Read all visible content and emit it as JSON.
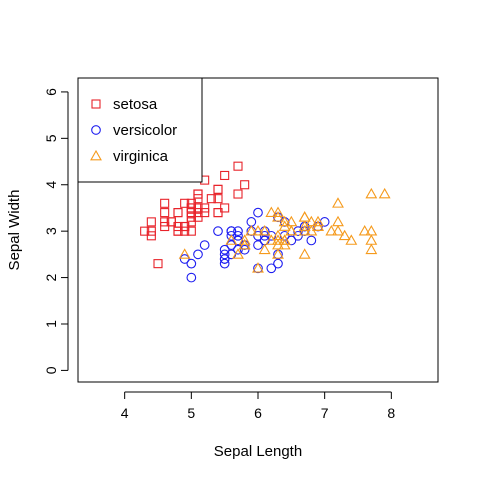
{
  "chart_data": {
    "type": "scatter",
    "xlabel": "Sepal Length",
    "ylabel": "Sepal Width",
    "xlim": [
      3.3,
      8.7
    ],
    "ylim": [
      -0.25,
      6.3
    ],
    "x_ticks": [
      4,
      5,
      6,
      7,
      8
    ],
    "y_ticks": [
      0,
      1,
      2,
      3,
      4,
      5,
      6
    ],
    "grid": false,
    "legend_position": "top-left",
    "series": [
      {
        "name": "setosa",
        "marker": "square",
        "color": "#e8232a",
        "points": [
          [
            5.1,
            3.5
          ],
          [
            4.9,
            3.0
          ],
          [
            4.7,
            3.2
          ],
          [
            4.6,
            3.1
          ],
          [
            5.0,
            3.6
          ],
          [
            5.4,
            3.9
          ],
          [
            4.6,
            3.4
          ],
          [
            5.0,
            3.4
          ],
          [
            4.4,
            2.9
          ],
          [
            4.9,
            3.1
          ],
          [
            5.4,
            3.7
          ],
          [
            4.8,
            3.4
          ],
          [
            4.8,
            3.0
          ],
          [
            4.3,
            3.0
          ],
          [
            5.8,
            4.0
          ],
          [
            5.7,
            4.4
          ],
          [
            5.4,
            3.9
          ],
          [
            5.1,
            3.5
          ],
          [
            5.7,
            3.8
          ],
          [
            5.1,
            3.8
          ],
          [
            5.4,
            3.4
          ],
          [
            5.1,
            3.7
          ],
          [
            4.6,
            3.6
          ],
          [
            5.1,
            3.3
          ],
          [
            4.8,
            3.4
          ],
          [
            5.0,
            3.0
          ],
          [
            5.0,
            3.4
          ],
          [
            5.2,
            3.5
          ],
          [
            5.2,
            3.4
          ],
          [
            4.7,
            3.2
          ],
          [
            4.8,
            3.1
          ],
          [
            5.4,
            3.4
          ],
          [
            5.2,
            4.1
          ],
          [
            5.5,
            4.2
          ],
          [
            4.9,
            3.1
          ],
          [
            5.0,
            3.2
          ],
          [
            5.5,
            3.5
          ],
          [
            4.9,
            3.6
          ],
          [
            4.4,
            3.0
          ],
          [
            5.1,
            3.4
          ],
          [
            5.0,
            3.5
          ],
          [
            4.5,
            2.3
          ],
          [
            4.4,
            3.2
          ],
          [
            5.0,
            3.5
          ],
          [
            5.1,
            3.8
          ],
          [
            4.8,
            3.0
          ],
          [
            5.1,
            3.8
          ],
          [
            4.6,
            3.2
          ],
          [
            5.3,
            3.7
          ],
          [
            5.0,
            3.3
          ]
        ]
      },
      {
        "name": "versicolor",
        "marker": "circle",
        "color": "#1e1ef0",
        "points": [
          [
            7.0,
            3.2
          ],
          [
            6.4,
            3.2
          ],
          [
            6.9,
            3.1
          ],
          [
            5.5,
            2.3
          ],
          [
            6.5,
            2.8
          ],
          [
            5.7,
            2.8
          ],
          [
            6.3,
            3.3
          ],
          [
            4.9,
            2.4
          ],
          [
            6.6,
            2.9
          ],
          [
            5.2,
            2.7
          ],
          [
            5.0,
            2.0
          ],
          [
            5.9,
            3.0
          ],
          [
            6.0,
            2.2
          ],
          [
            6.1,
            2.9
          ],
          [
            5.6,
            2.9
          ],
          [
            6.7,
            3.1
          ],
          [
            5.6,
            3.0
          ],
          [
            5.8,
            2.7
          ],
          [
            6.2,
            2.2
          ],
          [
            5.6,
            2.5
          ],
          [
            5.9,
            3.2
          ],
          [
            6.1,
            2.8
          ],
          [
            6.3,
            2.5
          ],
          [
            6.1,
            2.8
          ],
          [
            6.4,
            2.9
          ],
          [
            6.6,
            3.0
          ],
          [
            6.8,
            2.8
          ],
          [
            6.7,
            3.0
          ],
          [
            6.0,
            2.9
          ],
          [
            5.7,
            2.6
          ],
          [
            5.5,
            2.4
          ],
          [
            5.5,
            2.4
          ],
          [
            5.8,
            2.7
          ],
          [
            6.0,
            2.7
          ],
          [
            5.4,
            3.0
          ],
          [
            6.0,
            3.4
          ],
          [
            6.7,
            3.1
          ],
          [
            6.3,
            2.3
          ],
          [
            5.6,
            3.0
          ],
          [
            5.5,
            2.5
          ],
          [
            5.5,
            2.6
          ],
          [
            6.1,
            3.0
          ],
          [
            5.8,
            2.6
          ],
          [
            5.0,
            2.3
          ],
          [
            5.6,
            2.7
          ],
          [
            5.7,
            3.0
          ],
          [
            5.7,
            2.9
          ],
          [
            6.2,
            2.9
          ],
          [
            5.1,
            2.5
          ],
          [
            5.7,
            2.8
          ]
        ]
      },
      {
        "name": "virginica",
        "marker": "triangle",
        "color": "#f59a1c",
        "points": [
          [
            6.3,
            3.3
          ],
          [
            5.8,
            2.7
          ],
          [
            7.1,
            3.0
          ],
          [
            6.3,
            2.9
          ],
          [
            6.5,
            3.0
          ],
          [
            7.6,
            3.0
          ],
          [
            4.9,
            2.5
          ],
          [
            7.3,
            2.9
          ],
          [
            6.7,
            2.5
          ],
          [
            7.2,
            3.6
          ],
          [
            6.5,
            3.2
          ],
          [
            6.4,
            2.7
          ],
          [
            6.8,
            3.0
          ],
          [
            5.7,
            2.5
          ],
          [
            5.8,
            2.8
          ],
          [
            6.4,
            3.2
          ],
          [
            6.5,
            3.0
          ],
          [
            7.7,
            3.8
          ],
          [
            7.7,
            2.6
          ],
          [
            6.0,
            2.2
          ],
          [
            6.9,
            3.2
          ],
          [
            5.6,
            2.8
          ],
          [
            7.7,
            2.8
          ],
          [
            6.3,
            2.7
          ],
          [
            6.7,
            3.3
          ],
          [
            7.2,
            3.2
          ],
          [
            6.2,
            2.8
          ],
          [
            6.1,
            3.0
          ],
          [
            6.4,
            2.8
          ],
          [
            7.2,
            3.0
          ],
          [
            7.4,
            2.8
          ],
          [
            7.9,
            3.8
          ],
          [
            6.4,
            2.8
          ],
          [
            6.3,
            2.8
          ],
          [
            6.1,
            2.6
          ],
          [
            7.7,
            3.0
          ],
          [
            6.3,
            3.4
          ],
          [
            6.4,
            3.1
          ],
          [
            6.0,
            3.0
          ],
          [
            6.9,
            3.1
          ],
          [
            6.7,
            3.1
          ],
          [
            6.9,
            3.1
          ],
          [
            5.8,
            2.7
          ],
          [
            6.8,
            3.2
          ],
          [
            6.7,
            3.3
          ],
          [
            6.7,
            3.0
          ],
          [
            6.3,
            2.5
          ],
          [
            6.5,
            3.0
          ],
          [
            6.2,
            3.4
          ],
          [
            5.9,
            3.0
          ]
        ]
      }
    ]
  }
}
